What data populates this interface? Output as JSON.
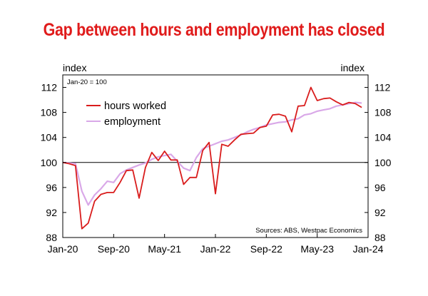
{
  "colors": {
    "title": "#e01b1b",
    "hours": "#d91c1c",
    "employment": "#d9a8e8",
    "frame": "#000000"
  },
  "chart_data": {
    "type": "line",
    "title": "Gap between hours and employment has closed",
    "ylabel_left": "index",
    "ylabel_right": "index",
    "base_note": "Jan-20 = 100",
    "source": "Sources: ABS, Westpac Economics",
    "ylim": [
      88,
      114
    ],
    "yticks": [
      88,
      92,
      96,
      100,
      104,
      108,
      112
    ],
    "reference_line": 100,
    "x_ticks": [
      "Jan-20",
      "Sep-20",
      "May-21",
      "Jan-22",
      "Sep-22",
      "May-23",
      "Jan-24"
    ],
    "x": [
      "Jan-20",
      "Feb-20",
      "Mar-20",
      "Apr-20",
      "May-20",
      "Jun-20",
      "Jul-20",
      "Aug-20",
      "Sep-20",
      "Oct-20",
      "Nov-20",
      "Dec-20",
      "Jan-21",
      "Feb-21",
      "Mar-21",
      "Apr-21",
      "May-21",
      "Jun-21",
      "Jul-21",
      "Aug-21",
      "Sep-21",
      "Oct-21",
      "Nov-21",
      "Dec-21",
      "Jan-22",
      "Feb-22",
      "Mar-22",
      "Apr-22",
      "May-22",
      "Jun-22",
      "Jul-22",
      "Aug-22",
      "Sep-22",
      "Oct-22",
      "Nov-22",
      "Dec-22",
      "Jan-23",
      "Feb-23",
      "Mar-23",
      "Apr-23",
      "May-23",
      "Jun-23",
      "Jul-23",
      "Aug-23",
      "Sep-23",
      "Oct-23",
      "Nov-23",
      "Dec-23"
    ],
    "legend": "upper-left",
    "series": [
      {
        "name": "hours worked",
        "values": [
          100,
          99.8,
          99.5,
          89.4,
          90.3,
          93.8,
          94.9,
          95.2,
          95.2,
          96.8,
          98.7,
          98.8,
          94.3,
          99.2,
          101.6,
          100.3,
          101.8,
          100.4,
          100.4,
          96.5,
          97.6,
          97.6,
          101.9,
          103.2,
          95.0,
          102.9,
          102.6,
          103.6,
          104.5,
          104.6,
          104.7,
          105.6,
          105.8,
          107.6,
          107.7,
          107.4,
          104.9,
          109.0,
          109.1,
          112.0,
          109.9,
          110.2,
          110.3,
          109.7,
          109.2,
          109.6,
          109.4,
          108.8
        ]
      },
      {
        "name": "employment",
        "values": [
          100,
          99.9,
          99.8,
          95.4,
          93.2,
          94.8,
          95.8,
          97.0,
          96.8,
          98.2,
          98.8,
          99.2,
          99.6,
          99.9,
          100.5,
          100.9,
          101.1,
          101.3,
          100.2,
          99.1,
          98.7,
          100.8,
          102.2,
          102.6,
          103.0,
          103.4,
          103.6,
          104.0,
          104.4,
          104.9,
          105.3,
          105.6,
          106.0,
          106.2,
          106.4,
          106.5,
          106.8,
          107.0,
          107.6,
          107.8,
          108.2,
          108.4,
          108.6,
          109.0,
          109.2,
          109.4,
          109.6,
          109.5
        ]
      }
    ]
  }
}
